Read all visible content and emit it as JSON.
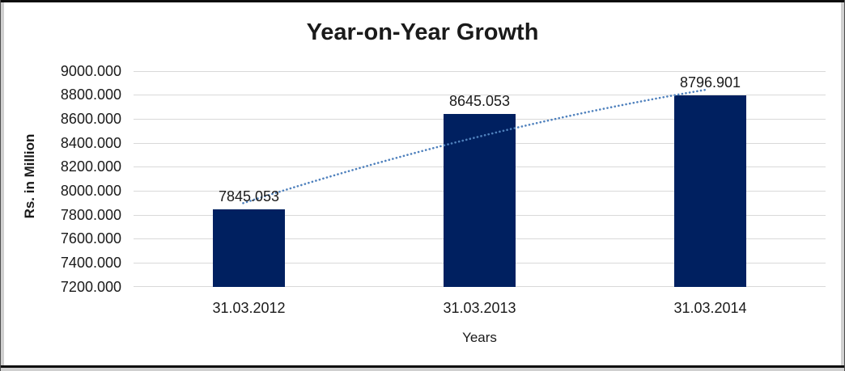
{
  "chart_data": {
    "type": "bar",
    "title": "Year-on-Year Growth",
    "xlabel": "Years",
    "ylabel": "Rs. in Million",
    "categories": [
      "31.03.2012",
      "31.03.2013",
      "31.03.2014"
    ],
    "values": [
      7845.053,
      8645.053,
      8796.901
    ],
    "data_labels": [
      "7845.053",
      "8645.053",
      "8796.901"
    ],
    "ylim": [
      7200,
      9000
    ],
    "ytick_step": 200,
    "ytick_labels": [
      "9000.000",
      "8800.000",
      "8600.000",
      "8400.000",
      "8200.000",
      "8000.000",
      "7800.000",
      "7600.000",
      "7400.000",
      "7200.000"
    ],
    "grid": true,
    "legend": false,
    "trendline": {
      "style": "dotted",
      "shape": "gentle upward curve from first bar top to last bar top"
    },
    "colors": {
      "bar": "#002060",
      "trendline": "#4f81bd",
      "gridline": "#d9d9d9",
      "text": "#1a1a1a"
    }
  }
}
